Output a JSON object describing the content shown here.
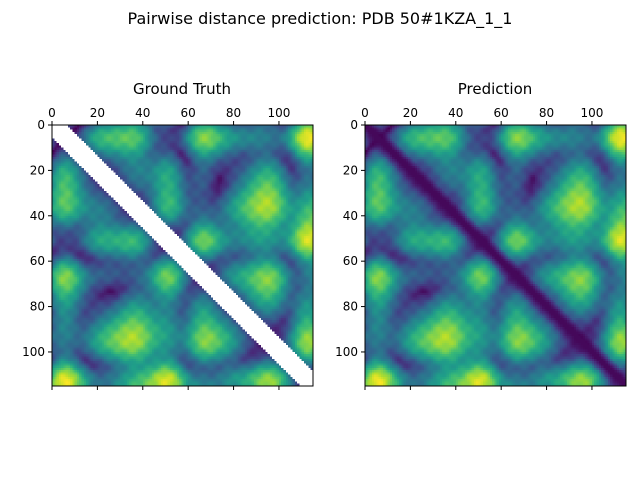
{
  "figure": {
    "suptitle": "Pairwise distance prediction: PDB 50#1KZA_1_1"
  },
  "chart_data": [
    {
      "type": "heatmap",
      "title": "Ground Truth",
      "n": 115,
      "xticks": [
        0,
        20,
        40,
        60,
        80,
        100
      ],
      "yticks": [
        0,
        20,
        40,
        60,
        80,
        100
      ],
      "xlim": [
        0,
        115
      ],
      "ylim": [
        115,
        0
      ],
      "colormap": "viridis",
      "masked_band": {
        "lower_offset": -5,
        "upper_offset": 6,
        "color": "#ffffff"
      }
    },
    {
      "type": "heatmap",
      "title": "Prediction",
      "n": 115,
      "xticks": [
        0,
        20,
        40,
        60,
        80,
        100
      ],
      "yticks": [
        0,
        20,
        40,
        60,
        80,
        100
      ],
      "xlim": [
        0,
        115
      ],
      "ylim": [
        115,
        0
      ],
      "colormap": "viridis",
      "diagonal": "low"
    }
  ],
  "colors": {
    "viridis": [
      "#440154",
      "#482878",
      "#3e4989",
      "#31688e",
      "#26828e",
      "#1f9e89",
      "#35b779",
      "#6ece58",
      "#b5de2b",
      "#fde725"
    ]
  }
}
